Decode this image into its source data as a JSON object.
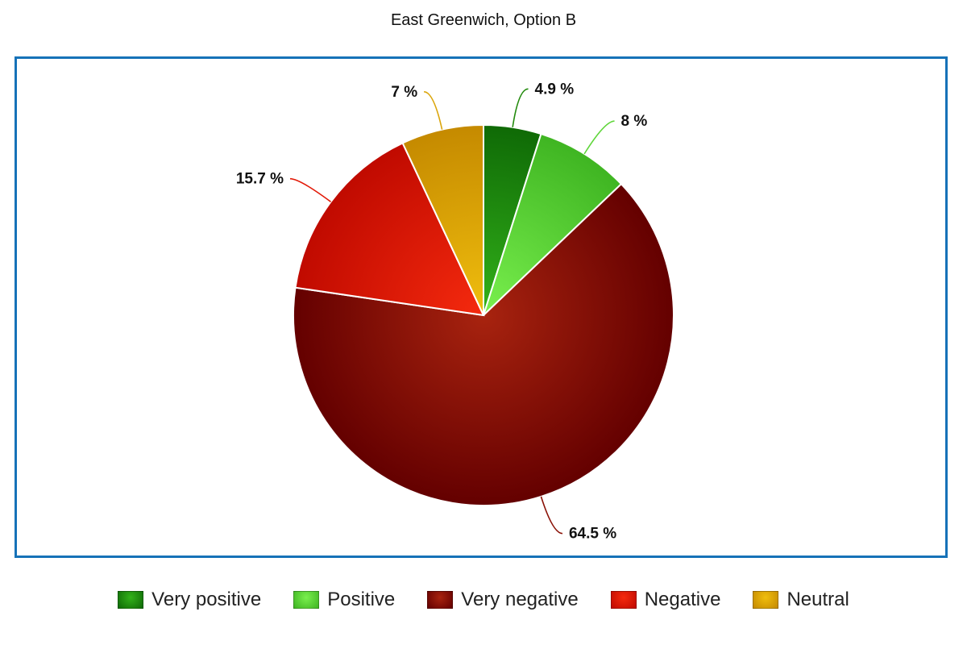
{
  "chart_data": {
    "type": "pie",
    "title": "East Greenwich, Option B",
    "slices": [
      {
        "name": "Very positive",
        "value": 4.9,
        "label": "4.9 %",
        "color": "#228a0c",
        "colorLight": "#33b21a",
        "colorDark": "#0f6a06"
      },
      {
        "name": "Positive",
        "value": 8.0,
        "label": "8 %",
        "color": "#5fd63a",
        "colorLight": "#7af04e",
        "colorDark": "#3fb522"
      },
      {
        "name": "Very negative",
        "value": 64.5,
        "label": "64.5 %",
        "color": "#8a1106",
        "colorLight": "#a8230f",
        "colorDark": "#640000"
      },
      {
        "name": "Negative",
        "value": 15.7,
        "label": "15.7 %",
        "color": "#e21a08",
        "colorLight": "#f52a0e",
        "colorDark": "#c00a00"
      },
      {
        "name": "Neutral",
        "value": 7.0,
        "label": "7 %",
        "color": "#dba50a",
        "colorLight": "#f0be0e",
        "colorDark": "#c58a00"
      }
    ],
    "legend_position": "bottom"
  },
  "frame_color": "#1672b8"
}
